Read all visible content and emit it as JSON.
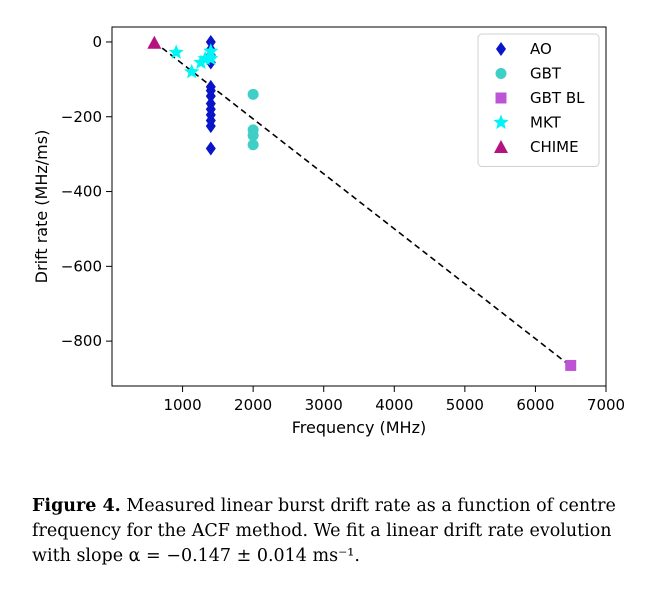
{
  "chart_data": {
    "type": "scatter",
    "xlabel": "Frequency (MHz)",
    "ylabel": "Drift rate (MHz/ms)",
    "xlim": [
      0,
      7000
    ],
    "ylim": [
      -920,
      40
    ],
    "xticks": [
      1000,
      2000,
      3000,
      4000,
      5000,
      6000,
      7000
    ],
    "yticks": [
      0,
      -200,
      -400,
      -600,
      -800
    ],
    "xtick_labels": [
      "1000",
      "2000",
      "3000",
      "4000",
      "5000",
      "6000",
      "7000"
    ],
    "ytick_labels": [
      "0",
      "−200",
      "−400",
      "−600",
      "−800"
    ],
    "legend_position": "top-right",
    "series": [
      {
        "name": "AO",
        "marker": "diamond",
        "color": "#0a14c8",
        "points": [
          [
            1400,
            0
          ],
          [
            1400,
            -20
          ],
          [
            1400,
            -35
          ],
          [
            1400,
            -55
          ],
          [
            1400,
            -120
          ],
          [
            1400,
            -130
          ],
          [
            1400,
            -145
          ],
          [
            1400,
            -165
          ],
          [
            1400,
            -180
          ],
          [
            1400,
            -195
          ],
          [
            1400,
            -210
          ],
          [
            1400,
            -225
          ],
          [
            1400,
            -285
          ]
        ]
      },
      {
        "name": "GBT",
        "marker": "circle",
        "color": "#40cfc7",
        "points": [
          [
            2000,
            -140
          ],
          [
            2000,
            -235
          ],
          [
            2000,
            -250
          ],
          [
            2000,
            -275
          ]
        ]
      },
      {
        "name": "GBT BL",
        "marker": "square",
        "color": "#bb55d6",
        "points": [
          [
            6500,
            -865
          ]
        ]
      },
      {
        "name": "MKT",
        "marker": "star",
        "color": "#00f5f5",
        "points": [
          [
            910,
            -28
          ],
          [
            1130,
            -80
          ],
          [
            1260,
            -55
          ],
          [
            1320,
            -45
          ],
          [
            1400,
            -25
          ],
          [
            1400,
            -45
          ]
        ]
      },
      {
        "name": "CHIME",
        "marker": "triangle",
        "color": "#b5127f",
        "points": [
          [
            600,
            -2
          ]
        ]
      }
    ],
    "fit_line": {
      "style": "dashed",
      "color": "#000000",
      "from": [
        600,
        0
      ],
      "to": [
        6500,
        -867
      ]
    }
  },
  "caption": {
    "label": "Figure 4.",
    "line1": " Measured linear burst drift rate as a function of centre",
    "line2": "frequency for the ACF method. We fit a linear drift rate evolution",
    "line3": "with slope α = −0.147 ± 0.014 ms⁻¹."
  }
}
